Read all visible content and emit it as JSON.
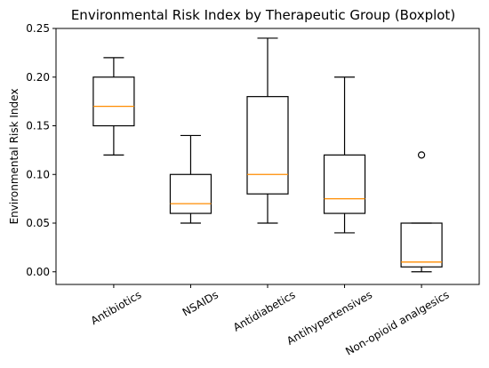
{
  "chart_data": {
    "type": "boxplot",
    "title": "Environmental Risk Index by Therapeutic Group (Boxplot)",
    "xlabel": "",
    "ylabel": "Environmental Risk Index",
    "ylim": [
      -0.013,
      0.25
    ],
    "yticks": [
      "0.00",
      "0.05",
      "0.10",
      "0.15",
      "0.20",
      "0.25"
    ],
    "ytick_values": [
      0.0,
      0.05,
      0.1,
      0.15,
      0.2,
      0.25
    ],
    "grid": false,
    "median_color": "#ff8c00",
    "categories": [
      "Antibiotics",
      "NSAIDs",
      "Antidiabetics",
      "Antihypertensives",
      "Non-opioid analgesics"
    ],
    "boxes": [
      {
        "whisker_low": 0.12,
        "q1": 0.15,
        "median": 0.17,
        "q3": 0.2,
        "whisker_high": 0.22,
        "fliers": []
      },
      {
        "whisker_low": 0.05,
        "q1": 0.06,
        "median": 0.07,
        "q3": 0.1,
        "whisker_high": 0.14,
        "fliers": []
      },
      {
        "whisker_low": 0.05,
        "q1": 0.08,
        "median": 0.1,
        "q3": 0.18,
        "whisker_high": 0.24,
        "fliers": []
      },
      {
        "whisker_low": 0.04,
        "q1": 0.06,
        "median": 0.075,
        "q3": 0.12,
        "whisker_high": 0.2,
        "fliers": []
      },
      {
        "whisker_low": 0.0,
        "q1": 0.005,
        "median": 0.01,
        "q3": 0.05,
        "whisker_high": 0.05,
        "fliers": [
          0.12
        ]
      }
    ]
  }
}
